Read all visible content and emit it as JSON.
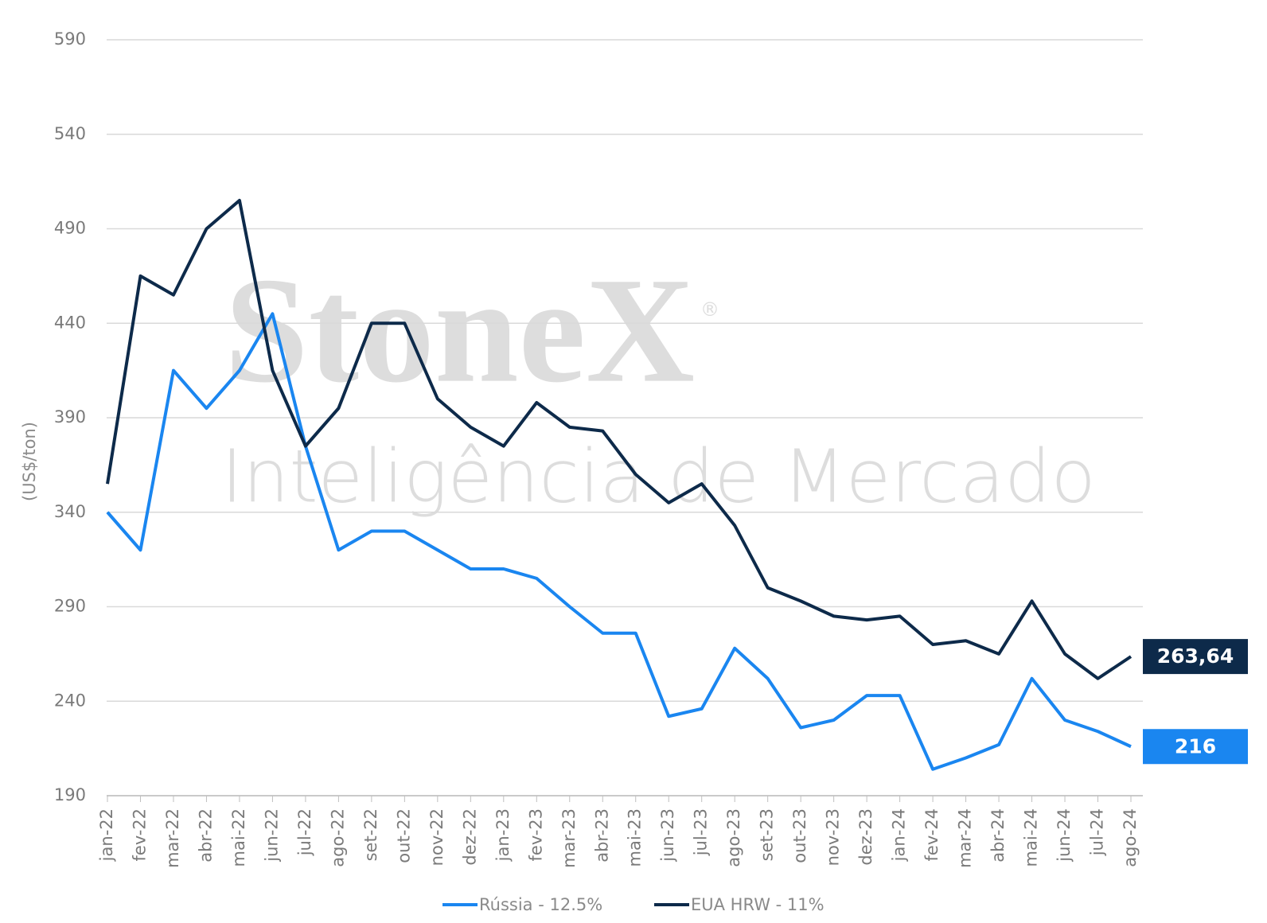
{
  "chart_data": {
    "type": "line",
    "y_label": "(US$/ton)",
    "watermark": {
      "brand": "StoneX",
      "mark": "®",
      "subtitle": "Inteligência de Mercado"
    },
    "categories": [
      "jan-22",
      "fev-22",
      "mar-22",
      "abr-22",
      "mai-22",
      "jun-22",
      "jul-22",
      "ago-22",
      "set-22",
      "out-22",
      "nov-22",
      "dez-22",
      "jan-23",
      "fev-23",
      "mar-23",
      "abr-23",
      "mai-23",
      "jun-23",
      "jul-23",
      "ago-23",
      "set-23",
      "out-23",
      "nov-23",
      "dez-23",
      "jan-24",
      "fev-24",
      "mar-24",
      "abr-24",
      "mai-24",
      "jun-24",
      "jul-24",
      "ago-24"
    ],
    "series": [
      {
        "name": "Rússia - 12.5%",
        "color": "#1a86f0",
        "values": [
          340,
          320,
          415,
          395,
          415,
          445,
          375,
          320,
          330,
          330,
          320,
          310,
          310,
          305,
          290,
          276,
          276,
          232,
          236,
          268,
          252,
          226,
          230,
          243,
          243,
          204,
          210,
          217,
          252,
          230,
          224,
          216
        ]
      },
      {
        "name": "EUA HRW - 11%",
        "color": "#0d2a4a",
        "values": [
          355,
          465,
          455,
          490,
          505,
          415,
          375,
          395,
          440,
          440,
          400,
          385,
          375,
          398,
          385,
          383,
          360,
          345,
          355,
          333,
          300,
          293,
          285,
          283,
          285,
          270,
          272,
          265,
          293,
          265,
          252,
          263.64
        ],
        "value_labels": [
          null,
          null,
          null,
          null,
          null,
          null,
          null,
          null,
          null,
          null,
          null,
          null,
          null,
          null,
          null,
          null,
          null,
          null,
          null,
          null,
          null,
          null,
          null,
          null,
          null,
          null,
          null,
          null,
          null,
          null,
          null,
          "263,64"
        ]
      }
    ],
    "ylim": [
      190,
      590
    ],
    "yticks": [
      190,
      240,
      290,
      340,
      390,
      440,
      490,
      540,
      590
    ],
    "grid": true,
    "legend": "bottom"
  }
}
